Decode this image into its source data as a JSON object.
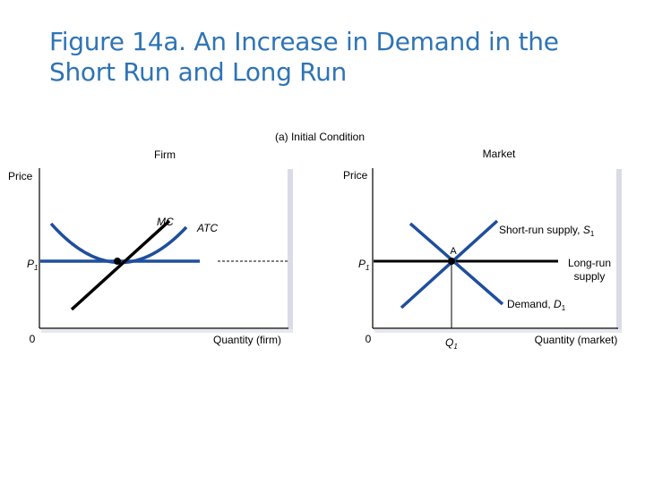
{
  "slide": {
    "title_line1": "Figure 14a. An Increase in Demand in the",
    "title_line2": "Short Run and Long Run"
  },
  "figure": {
    "panel_title": "(a) Initial Condition",
    "firm": {
      "heading": "Firm",
      "y_axis_label": "Price",
      "x_axis_label": "Quantity (firm)",
      "origin": "0",
      "price_label": "P",
      "price_sub": "1",
      "mc_label": "MC",
      "atc_label": "ATC"
    },
    "market": {
      "heading": "Market",
      "y_axis_label": "Price",
      "x_axis_label": "Quantity (market)",
      "origin": "0",
      "price_label": "P",
      "price_sub": "1",
      "quantity_label": "Q",
      "quantity_sub": "1",
      "point_label": "A",
      "short_run_supply_text": "Short-run supply, ",
      "short_run_supply_symbol": "S",
      "short_run_supply_sub": "1",
      "long_run_supply_line1": "Long-run",
      "long_run_supply_line2": "supply",
      "demand_text": "Demand, ",
      "demand_symbol": "D",
      "demand_sub": "1"
    }
  },
  "colors": {
    "title": "#2e74b5",
    "curve_blue": "#1f4e9c",
    "axis_shadow": "#d9dbe6"
  }
}
